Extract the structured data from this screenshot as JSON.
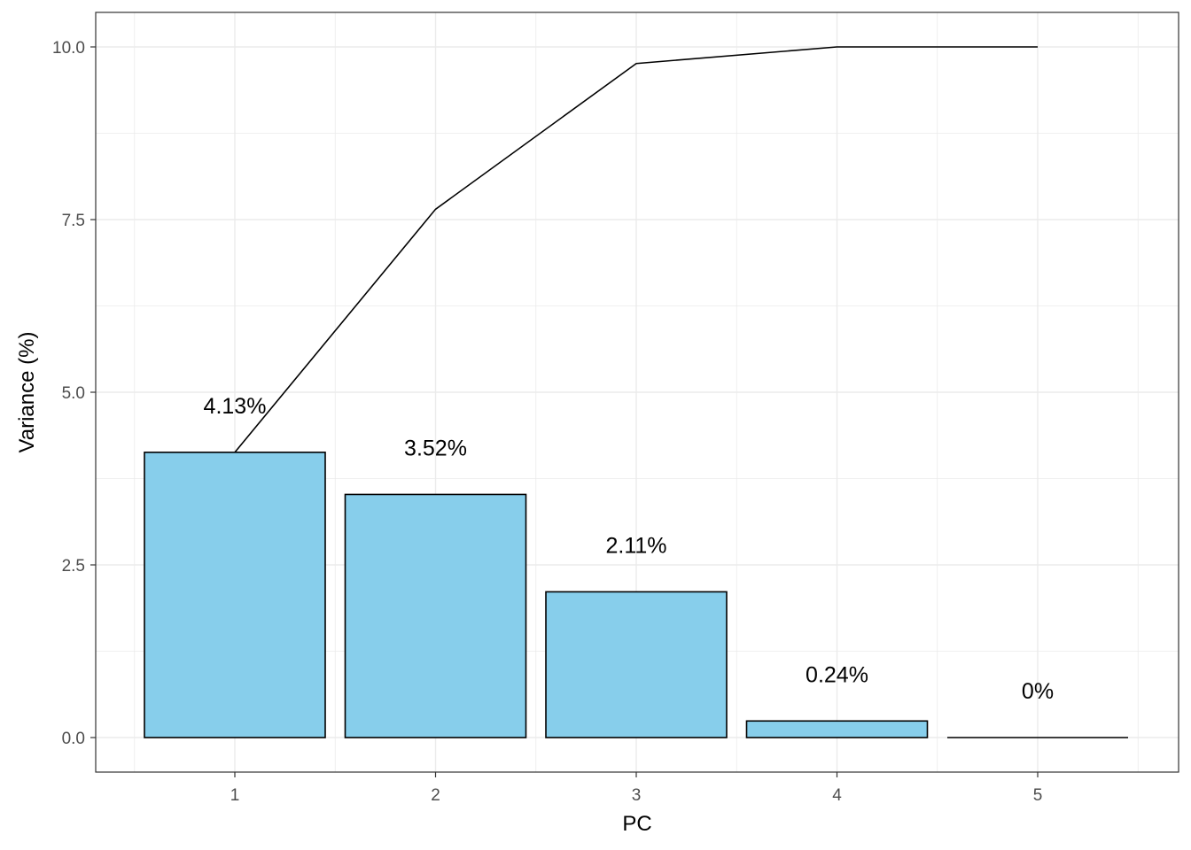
{
  "chart_data": {
    "type": "bar",
    "categories": [
      "1",
      "2",
      "3",
      "4",
      "5"
    ],
    "values": [
      4.13,
      3.52,
      2.11,
      0.24,
      0
    ],
    "data_labels": [
      "4.13%",
      "3.52%",
      "2.11%",
      "0.24%",
      "0%"
    ],
    "line_values": [
      4.13,
      7.65,
      9.76,
      10.0,
      10.0
    ],
    "xlabel": "PC",
    "ylabel": "Variance (%)",
    "ylim": [
      -0.5,
      10.5
    ],
    "y_ticks": [
      0.0,
      2.5,
      5.0,
      7.5,
      10.0
    ],
    "y_tick_labels": [
      "0.0",
      "2.5",
      "5.0",
      "7.5",
      "10.0"
    ],
    "x_tick_labels": [
      "1",
      "2",
      "3",
      "4",
      "5"
    ],
    "grid": true,
    "legend": "none",
    "colors": {
      "bar_fill": "#87CEEB",
      "bar_stroke": "#000000",
      "line": "#000000",
      "grid": "#ebebeb",
      "panel_border": "#333333",
      "tick_text": "#4d4d4d"
    }
  }
}
